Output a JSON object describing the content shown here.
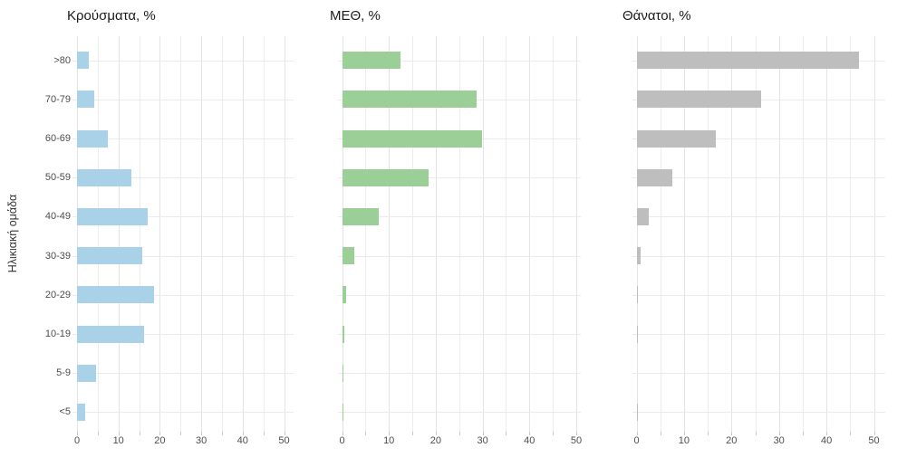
{
  "figure": {
    "y_axis_label": "Ηλικιακή ομάδα",
    "background_color": "#ffffff",
    "grid_major_color": "#e4e4e4",
    "grid_minor_color": "#ededed",
    "row_grid_color": "#ebebeb",
    "axis_tick_color": "#c9c9c9",
    "axis_label_color": "#4d4d4d",
    "title_color": "#1a1a1a"
  },
  "chart_data": [
    {
      "type": "bar",
      "orientation": "horizontal",
      "title": "Κρούσματα, %",
      "bar_color": "#a9d2e8",
      "categories": [
        ">80",
        "70-79",
        "60-69",
        "50-59",
        "40-49",
        "30-39",
        "20-29",
        "10-19",
        "5-9",
        "<5"
      ],
      "values": [
        2.8,
        4.1,
        7.4,
        13.1,
        17.0,
        15.7,
        18.7,
        16.1,
        4.7,
        2.0
      ],
      "xlim": [
        0,
        50
      ],
      "xticks": [
        0,
        10,
        20,
        30,
        40,
        50
      ],
      "xgrid_step_minor": 5,
      "ylabel": "Ηλικιακή ομάδα",
      "grid": true,
      "legend": false,
      "show_category_labels": true
    },
    {
      "type": "bar",
      "orientation": "horizontal",
      "title": "ΜΕΘ, %",
      "bar_color": "#9cce98",
      "categories": [
        ">80",
        "70-79",
        "60-69",
        "50-59",
        "40-49",
        "30-39",
        "20-29",
        "10-19",
        "5-9",
        "<5"
      ],
      "values": [
        12.4,
        28.8,
        29.9,
        18.4,
        7.8,
        2.6,
        0.9,
        0.4,
        0.1,
        0.3
      ],
      "xlim": [
        0,
        50
      ],
      "xticks": [
        0,
        10,
        20,
        30,
        40,
        50
      ],
      "xgrid_step_minor": 5,
      "ylabel": "",
      "grid": true,
      "legend": false,
      "show_category_labels": false
    },
    {
      "type": "bar",
      "orientation": "horizontal",
      "title": "Θάνατοι, %",
      "bar_color": "#bebebe",
      "categories": [
        ">80",
        "70-79",
        "60-69",
        "50-59",
        "40-49",
        "30-39",
        "20-29",
        "10-19",
        "5-9",
        "<5"
      ],
      "values": [
        46.9,
        26.3,
        16.7,
        7.5,
        2.5,
        0.8,
        0.2,
        0.2,
        0.0,
        0.1
      ],
      "xlim": [
        0,
        50
      ],
      "xticks": [
        0,
        10,
        20,
        30,
        40,
        50
      ],
      "xgrid_step_minor": 5,
      "ylabel": "",
      "grid": true,
      "legend": false,
      "show_category_labels": false
    }
  ]
}
